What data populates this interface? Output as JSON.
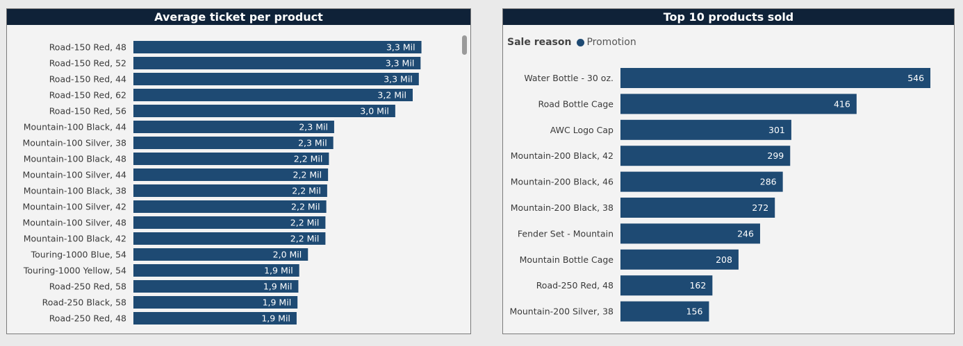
{
  "colors": {
    "bar": "#1e4a73",
    "header": "#0f2238"
  },
  "left_panel": {
    "title": "Average ticket per product"
  },
  "right_panel": {
    "title": "Top 10 products sold",
    "legend": {
      "title": "Sale reason",
      "item": "Promotion"
    }
  },
  "chart_data": [
    {
      "type": "bar",
      "orientation": "horizontal",
      "title": "Average ticket per product",
      "categories": [
        "Road-150 Red, 48",
        "Road-150 Red, 52",
        "Road-150 Red, 44",
        "Road-150 Red, 62",
        "Road-150 Red, 56",
        "Mountain-100 Black, 44",
        "Mountain-100 Silver, 38",
        "Mountain-100 Black, 48",
        "Mountain-100 Silver, 44",
        "Mountain-100 Black, 38",
        "Mountain-100 Silver, 42",
        "Mountain-100 Silver, 48",
        "Mountain-100 Black, 42",
        "Touring-1000 Blue, 54",
        "Touring-1000 Yellow, 54",
        "Road-250 Red, 58",
        "Road-250 Black, 58",
        "Road-250 Red, 48"
      ],
      "values": [
        3.3,
        3.29,
        3.27,
        3.2,
        3.0,
        2.3,
        2.29,
        2.24,
        2.23,
        2.22,
        2.21,
        2.2,
        2.2,
        2.0,
        1.9,
        1.89,
        1.88,
        1.87
      ],
      "data_labels": [
        "3,3 Mil",
        "3,3 Mil",
        "3,3 Mil",
        "3,2 Mil",
        "3,0 Mil",
        "2,3 Mil",
        "2,3 Mil",
        "2,2 Mil",
        "2,2 Mil",
        "2,2 Mil",
        "2,2 Mil",
        "2,2 Mil",
        "2,2 Mil",
        "2,0 Mil",
        "1,9 Mil",
        "1,9 Mil",
        "1,9 Mil",
        "1,9 Mil"
      ],
      "xlim": [
        0,
        4.8
      ],
      "grid": false
    },
    {
      "type": "bar",
      "orientation": "horizontal",
      "title": "Top 10 products sold",
      "categories": [
        "Water Bottle - 30 oz.",
        "Road Bottle Cage",
        "AWC Logo Cap",
        "Mountain-200 Black, 42",
        "Mountain-200 Black, 46",
        "Mountain-200 Black, 38",
        "Fender Set - Mountain",
        "Mountain Bottle Cage",
        "Road-250 Red, 48",
        "Mountain-200 Silver, 38"
      ],
      "values": [
        546,
        416,
        301,
        299,
        286,
        272,
        246,
        208,
        162,
        156
      ],
      "data_labels": [
        "546",
        "416",
        "301",
        "299",
        "286",
        "272",
        "246",
        "208",
        "162",
        "156"
      ],
      "xlim": [
        0,
        590
      ],
      "grid": false
    }
  ]
}
